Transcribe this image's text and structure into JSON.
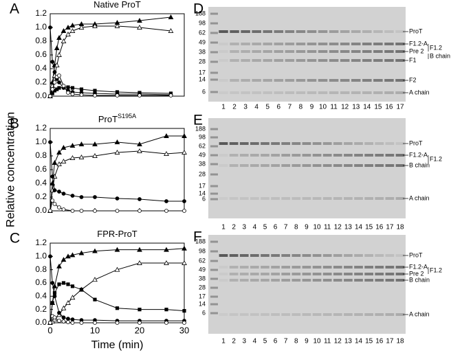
{
  "chart_data": [
    {
      "type": "line",
      "panel": "A",
      "title": "Native ProT",
      "x": [
        0,
        0.5,
        1,
        1.5,
        2,
        3,
        4,
        5,
        7,
        10,
        15,
        20,
        27
      ],
      "xlim": [
        0,
        30
      ],
      "xticks": [
        0,
        10,
        20,
        30
      ],
      "xtick_labels": false,
      "ylim": [
        0,
        1.2
      ],
      "yticks": [
        {
          "value": 0,
          "label": "0.0"
        },
        0.2,
        0.4,
        0.6,
        0.8,
        {
          "value": 1,
          "label": "1.0"
        },
        1.2
      ],
      "series": [
        {
          "color": "#000000",
          "marker": "triangle-filled",
          "values": [
            0,
            0.2,
            0.45,
            0.7,
            0.85,
            0.95,
            1.0,
            1.03,
            1.05,
            1.05,
            1.07,
            1.1,
            1.15
          ]
        },
        {
          "color": "#000000",
          "marker": "triangle-open",
          "values": [
            0,
            0.15,
            0.3,
            0.45,
            0.6,
            0.8,
            0.9,
            0.95,
            1.0,
            1.02,
            1.02,
            1.0,
            0.95
          ]
        },
        {
          "color": "#000000",
          "marker": "circle-filled",
          "values": [
            1.0,
            0.5,
            0.35,
            0.25,
            0.2,
            0.12,
            0.08,
            0.06,
            0.05,
            0.04,
            0.03,
            0.03,
            0.02
          ]
        },
        {
          "color": "#000000",
          "marker": "square-filled",
          "values": [
            0,
            0.04,
            0.08,
            0.1,
            0.12,
            0.13,
            0.13,
            0.12,
            0.1,
            0.08,
            0.06,
            0.05,
            0.04
          ]
        },
        {
          "color": "#000000",
          "marker": "circle-open",
          "values": [
            0,
            0.1,
            0.2,
            0.28,
            0.3,
            0.15,
            0.05,
            0.03,
            0.02,
            0.01,
            0.01,
            0.01,
            0.01
          ]
        }
      ]
    },
    {
      "type": "line",
      "panel": "B",
      "title": "ProT",
      "title_sup": "S195A",
      "ylabel": "Relative concentration",
      "x": [
        0,
        0.5,
        1,
        2,
        3,
        5,
        7,
        10,
        15,
        20,
        26,
        30
      ],
      "xlim": [
        0,
        30
      ],
      "xticks": [
        0,
        10,
        20,
        30
      ],
      "xtick_labels": false,
      "ylim": [
        0,
        1.2
      ],
      "yticks": [
        {
          "value": 0,
          "label": "0.0"
        },
        0.2,
        0.4,
        0.6,
        0.8,
        {
          "value": 1,
          "label": "1.0"
        },
        1.2
      ],
      "series": [
        {
          "color": "#000000",
          "marker": "triangle-filled",
          "values": [
            0,
            0.4,
            0.7,
            0.85,
            0.92,
            0.95,
            0.97,
            0.97,
            1.0,
            0.97,
            1.09,
            1.09
          ]
        },
        {
          "color": "#000000",
          "marker": "triangle-open",
          "values": [
            0,
            0.3,
            0.5,
            0.68,
            0.72,
            0.77,
            0.78,
            0.8,
            0.85,
            0.87,
            0.83,
            0.85
          ]
        },
        {
          "color": "#000000",
          "marker": "circle-filled",
          "values": [
            1.0,
            0.5,
            0.3,
            0.28,
            0.25,
            0.22,
            0.2,
            0.2,
            0.18,
            0.17,
            0.14,
            0.14
          ]
        },
        {
          "color": "#000000",
          "marker": "circle-open",
          "values": [
            0,
            0.15,
            0.1,
            0.05,
            0.02,
            0,
            0,
            0,
            0,
            0,
            0,
            0
          ]
        }
      ]
    },
    {
      "type": "line",
      "panel": "C",
      "title": "FPR-ProT",
      "xlabel": "Time (min)",
      "x": [
        0,
        0.5,
        1,
        2,
        3,
        4,
        5,
        7,
        10,
        15,
        20,
        26,
        30
      ],
      "xlim": [
        0,
        30
      ],
      "xticks": [
        0,
        10,
        20,
        30
      ],
      "xtick_labels": true,
      "ylim": [
        0,
        1.2
      ],
      "yticks": [
        {
          "value": 0,
          "label": "0.0"
        },
        0.2,
        0.4,
        0.6,
        0.8,
        {
          "value": 1,
          "label": "1.0"
        },
        1.2
      ],
      "series": [
        {
          "color": "#000000",
          "marker": "triangle-filled",
          "values": [
            0,
            0.3,
            0.55,
            0.85,
            0.95,
            1.0,
            1.02,
            1.05,
            1.08,
            1.1,
            1.1,
            1.1,
            1.12
          ]
        },
        {
          "color": "#000000",
          "marker": "triangle-open",
          "values": [
            0,
            0.02,
            0.05,
            0.12,
            0.22,
            0.3,
            0.38,
            0.5,
            0.65,
            0.8,
            0.9,
            0.9,
            0.9
          ]
        },
        {
          "color": "#000000",
          "marker": "circle-filled",
          "values": [
            1.0,
            0.6,
            0.4,
            0.15,
            0.08,
            0.06,
            0.05,
            0.04,
            0.04,
            0.03,
            0.03,
            0.03,
            0.03
          ]
        },
        {
          "color": "#000000",
          "marker": "square-filled",
          "values": [
            0,
            0.3,
            0.45,
            0.58,
            0.6,
            0.58,
            0.55,
            0.5,
            0.35,
            0.22,
            0.2,
            0.2,
            0.18
          ]
        },
        {
          "color": "#000000",
          "marker": "circle-open",
          "values": [
            0,
            0.1,
            0.08,
            0.03,
            0.02,
            0.01,
            0,
            0,
            0,
            0,
            0,
            0,
            0
          ]
        }
      ]
    }
  ],
  "gels": [
    {
      "panel": "D",
      "markers": [
        "188",
        "98",
        "62",
        "49",
        "38",
        "28",
        "17",
        "14",
        "6"
      ],
      "lanes": [
        "1",
        "2",
        "3",
        "4",
        "5",
        "6",
        "7",
        "8",
        "9",
        "10",
        "11",
        "12",
        "13",
        "14",
        "15",
        "16",
        "17"
      ],
      "labels": [
        "ProT",
        "F1.2-A",
        "Pre 2",
        "F1",
        "F2",
        "A chain"
      ],
      "side_labels": [
        "F1.2",
        "B chain"
      ]
    },
    {
      "panel": "E",
      "markers": [
        "188",
        "98",
        "62",
        "49",
        "38",
        "28",
        "17",
        "14",
        "6"
      ],
      "lanes": [
        "1",
        "2",
        "3",
        "4",
        "5",
        "6",
        "7",
        "8",
        "9",
        "10",
        "11",
        "12",
        "13",
        "14",
        "15",
        "16",
        "17",
        "18"
      ],
      "labels": [
        "ProT",
        "F1.2-A",
        "B chain",
        "A chain"
      ],
      "side_labels": [
        "F1.2"
      ]
    },
    {
      "panel": "F",
      "markers": [
        "188",
        "98",
        "62",
        "49",
        "38",
        "28",
        "17",
        "14",
        "6"
      ],
      "lanes": [
        "1",
        "2",
        "3",
        "4",
        "5",
        "6",
        "7",
        "8",
        "9",
        "10",
        "11",
        "12",
        "13",
        "14",
        "15",
        "16",
        "17",
        "18"
      ],
      "labels": [
        "ProT",
        "F1.2-A",
        "Pre 2",
        "B chain",
        "A chain"
      ],
      "side_labels": [
        "F1.2"
      ]
    }
  ]
}
